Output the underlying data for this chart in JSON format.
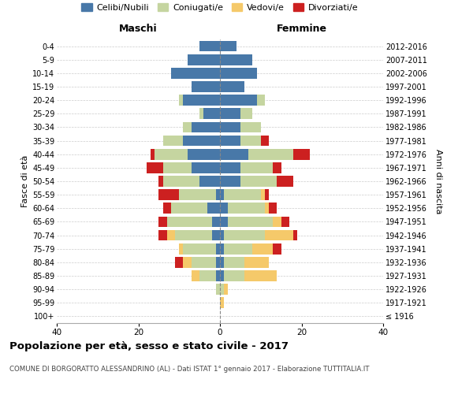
{
  "age_groups": [
    "100+",
    "95-99",
    "90-94",
    "85-89",
    "80-84",
    "75-79",
    "70-74",
    "65-69",
    "60-64",
    "55-59",
    "50-54",
    "45-49",
    "40-44",
    "35-39",
    "30-34",
    "25-29",
    "20-24",
    "15-19",
    "10-14",
    "5-9",
    "0-4"
  ],
  "birth_years": [
    "≤ 1916",
    "1917-1921",
    "1922-1926",
    "1927-1931",
    "1932-1936",
    "1937-1941",
    "1942-1946",
    "1947-1951",
    "1952-1956",
    "1957-1961",
    "1962-1966",
    "1967-1971",
    "1972-1976",
    "1977-1981",
    "1982-1986",
    "1987-1991",
    "1992-1996",
    "1997-2001",
    "2002-2006",
    "2007-2011",
    "2012-2016"
  ],
  "maschi": {
    "celibi": [
      0,
      0,
      0,
      1,
      1,
      1,
      2,
      2,
      3,
      1,
      5,
      7,
      8,
      9,
      7,
      4,
      9,
      7,
      12,
      8,
      5
    ],
    "coniugati": [
      0,
      0,
      1,
      4,
      6,
      8,
      9,
      11,
      9,
      9,
      9,
      7,
      8,
      5,
      2,
      1,
      1,
      0,
      0,
      0,
      0
    ],
    "vedovi": [
      0,
      0,
      0,
      2,
      2,
      1,
      2,
      0,
      0,
      0,
      0,
      0,
      0,
      0,
      0,
      0,
      0,
      0,
      0,
      0,
      0
    ],
    "divorziati": [
      0,
      0,
      0,
      0,
      2,
      0,
      2,
      2,
      2,
      5,
      1,
      4,
      1,
      0,
      0,
      0,
      0,
      0,
      0,
      0,
      0
    ]
  },
  "femmine": {
    "nubili": [
      0,
      0,
      0,
      1,
      1,
      1,
      1,
      2,
      2,
      1,
      5,
      5,
      7,
      5,
      5,
      5,
      9,
      6,
      9,
      8,
      4
    ],
    "coniugate": [
      0,
      0,
      1,
      5,
      5,
      7,
      10,
      11,
      9,
      9,
      9,
      8,
      11,
      5,
      5,
      3,
      2,
      0,
      0,
      0,
      0
    ],
    "vedove": [
      0,
      1,
      1,
      8,
      6,
      5,
      7,
      2,
      1,
      1,
      0,
      0,
      0,
      0,
      0,
      0,
      0,
      0,
      0,
      0,
      0
    ],
    "divorziate": [
      0,
      0,
      0,
      0,
      0,
      2,
      1,
      2,
      2,
      1,
      4,
      2,
      4,
      2,
      0,
      0,
      0,
      0,
      0,
      0,
      0
    ]
  },
  "colors": {
    "celibi": "#4878a8",
    "coniugati": "#c5d5a0",
    "vedovi": "#f5c96a",
    "divorziati": "#cc2020"
  },
  "xlim": 40,
  "title": "Popolazione per età, sesso e stato civile - 2017",
  "subtitle": "COMUNE DI BORGORATTO ALESSANDRINO (AL) - Dati ISTAT 1° gennaio 2017 - Elaborazione TUTTITALIA.IT",
  "ylabel_left": "Fasce di età",
  "ylabel_right": "Anni di nascita",
  "xlabel_maschi": "Maschi",
  "xlabel_femmine": "Femmine",
  "legend_labels": [
    "Celibi/Nubili",
    "Coniugati/e",
    "Vedovi/e",
    "Divorziati/e"
  ]
}
